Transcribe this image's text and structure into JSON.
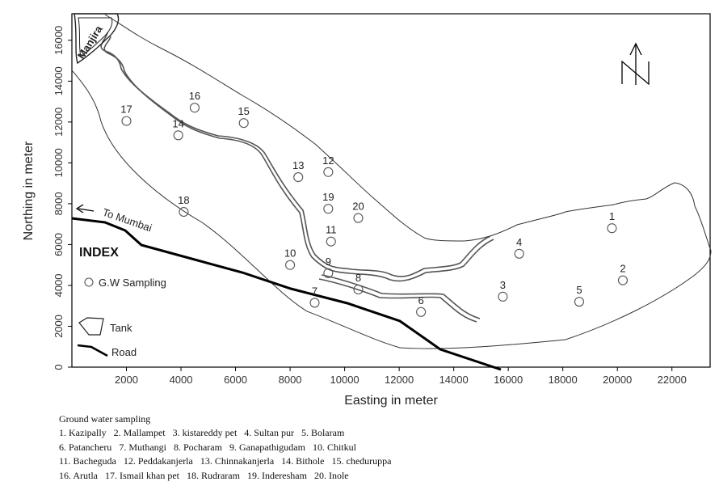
{
  "axes": {
    "xlabel": "Easting in meter",
    "ylabel": "Northing in meter",
    "xlim": [
      0,
      23400
    ],
    "ylim": [
      0,
      17300
    ],
    "xticks": [
      2000,
      4000,
      6000,
      8000,
      10000,
      12000,
      14000,
      16000,
      18000,
      20000,
      22000
    ],
    "yticks": [
      0,
      2000,
      4000,
      6000,
      8000,
      10000,
      12000,
      14000,
      16000
    ],
    "x_tick_labels": [
      "2000",
      "4000",
      "6000",
      "8000",
      "10000",
      "12000",
      "14000",
      "16000",
      "18000",
      "20000",
      "22000"
    ],
    "y_tick_labels": [
      "0",
      "2000",
      "4000",
      "6000",
      "8000",
      "10000",
      "12000",
      "14000",
      "16000"
    ]
  },
  "map_labels": {
    "river": "Manjira",
    "road_direction": "To Mumbai",
    "north": "N"
  },
  "legend": {
    "title": "INDEX",
    "items": [
      {
        "symbol": "circle",
        "label": "G.W Sampling"
      },
      {
        "symbol": "tank",
        "label": "Tank"
      },
      {
        "symbol": "road",
        "label": "Road"
      }
    ]
  },
  "sampling_sites": [
    {
      "id": "1",
      "x": 19800,
      "y": 6800
    },
    {
      "id": "2",
      "x": 20200,
      "y": 4250
    },
    {
      "id": "3",
      "x": 15800,
      "y": 3450
    },
    {
      "id": "4",
      "x": 16400,
      "y": 5550
    },
    {
      "id": "5",
      "x": 18600,
      "y": 3200
    },
    {
      "id": "6",
      "x": 12800,
      "y": 2700
    },
    {
      "id": "7",
      "x": 8900,
      "y": 3150
    },
    {
      "id": "8",
      "x": 10500,
      "y": 3800
    },
    {
      "id": "9",
      "x": 9400,
      "y": 4600
    },
    {
      "id": "10",
      "x": 8000,
      "y": 5000
    },
    {
      "id": "11",
      "x": 9500,
      "y": 6150
    },
    {
      "id": "12",
      "x": 9400,
      "y": 9550
    },
    {
      "id": "13",
      "x": 8300,
      "y": 9300
    },
    {
      "id": "14",
      "x": 3900,
      "y": 11350
    },
    {
      "id": "15",
      "x": 6300,
      "y": 11950
    },
    {
      "id": "16",
      "x": 4500,
      "y": 12700
    },
    {
      "id": "17",
      "x": 2000,
      "y": 12050
    },
    {
      "id": "18",
      "x": 4100,
      "y": 7600
    },
    {
      "id": "19",
      "x": 9400,
      "y": 7750
    },
    {
      "id": "20",
      "x": 10500,
      "y": 7300
    }
  ],
  "caption": {
    "title": "Ground water sampling",
    "lines": [
      [
        "1. Kazipally",
        "2. Mallampet",
        "3. kistareddy pet",
        "4. Sultan pur",
        "5. Bolaram"
      ],
      [
        "6. Patancheru",
        "7. Muthangi",
        "8. Pocharam",
        "9. Ganapathigudam",
        "10. Chitkul"
      ],
      [
        "11. Bacheguda",
        "12. Peddakanjerla",
        "13. Chinnakanjerla",
        "14. Bithole",
        "15. cheduruppa"
      ],
      [
        "16. Arutla",
        "17. Ismail khan pet",
        "18. Rudraram",
        "19. Inderesham",
        "20. Inole"
      ]
    ]
  }
}
